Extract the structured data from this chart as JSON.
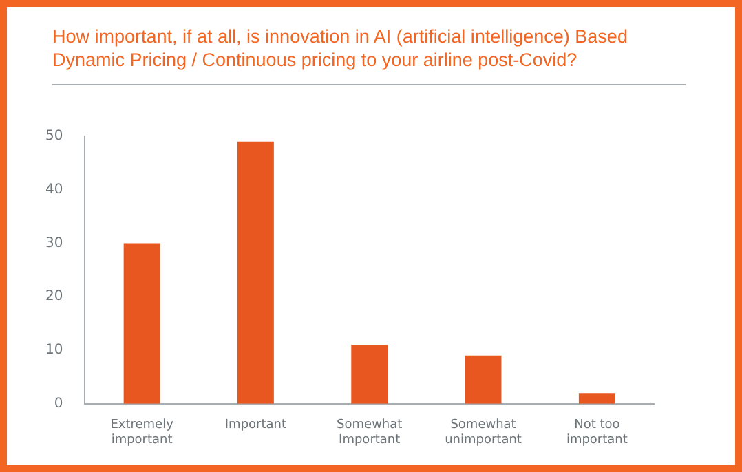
{
  "chart_data": {
    "type": "bar",
    "title": "How important, if at all, is innovation in AI (artificial intelligence) Based Dynamic Pricing / Continuous pricing to your airline post-Covid?",
    "categories": [
      "Extremely important",
      "Important",
      "Somewhat Important",
      "Somewhat unimportant",
      "Not too important"
    ],
    "values": [
      30,
      49,
      11,
      9,
      2
    ],
    "color": "#e8571f",
    "ylim": [
      0,
      50
    ],
    "yticks": [
      0,
      10,
      20,
      30,
      40,
      50
    ],
    "grid": false,
    "legend": false
  }
}
